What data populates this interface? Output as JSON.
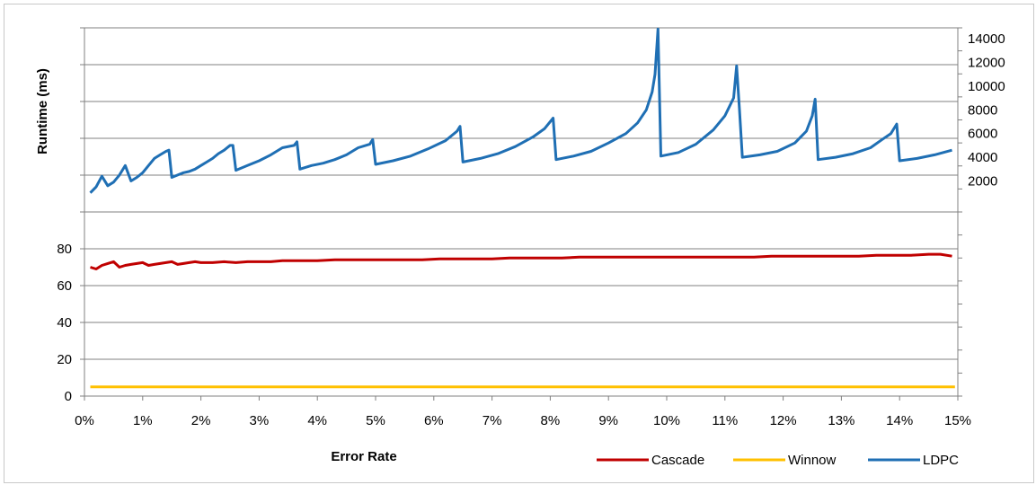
{
  "chart_data": {
    "type": "line",
    "xlabel": "Error Rate",
    "ylabel": "Runtime (ms)",
    "x_ticks": [
      "0%",
      "1%",
      "2%",
      "3%",
      "4%",
      "5%",
      "6%",
      "7%",
      "8%",
      "9%",
      "10%",
      "11%",
      "12%",
      "13%",
      "14%",
      "15%"
    ],
    "y_left_ticks": [
      "0",
      "20",
      "40",
      "60",
      "80"
    ],
    "y_right_ticks": [
      "2000",
      "4000",
      "6000",
      "8000",
      "10000",
      "12000",
      "14000"
    ],
    "xlim": [
      0,
      15
    ],
    "y_left_range": [
      0,
      80
    ],
    "y_right_range": [
      2000,
      14000
    ],
    "legend_position": "bottom-right",
    "grid": true,
    "series": [
      {
        "name": "Cascade",
        "color": "#c00000",
        "axis": "left",
        "x": [
          0.1,
          0.2,
          0.3,
          0.4,
          0.5,
          0.6,
          0.7,
          0.8,
          0.9,
          1.0,
          1.1,
          1.2,
          1.3,
          1.4,
          1.5,
          1.6,
          1.7,
          1.8,
          1.9,
          2.0,
          2.2,
          2.4,
          2.6,
          2.8,
          3.0,
          3.2,
          3.4,
          3.6,
          3.8,
          4.0,
          4.3,
          4.6,
          4.9,
          5.2,
          5.5,
          5.8,
          6.1,
          6.4,
          6.7,
          7.0,
          7.3,
          7.6,
          7.9,
          8.2,
          8.5,
          8.8,
          9.1,
          9.4,
          9.7,
          10.0,
          10.3,
          10.6,
          10.9,
          11.2,
          11.5,
          11.8,
          12.1,
          12.4,
          12.7,
          13.0,
          13.3,
          13.6,
          13.9,
          14.2,
          14.5,
          14.7,
          14.9
        ],
        "values": [
          70,
          69,
          71,
          72,
          73,
          70,
          71,
          71.5,
          72,
          72.5,
          71,
          71.5,
          72,
          72.5,
          73,
          71.5,
          72,
          72.5,
          73,
          72.5,
          72.5,
          73,
          72.5,
          73,
          73,
          73,
          73.5,
          73.5,
          73.5,
          73.5,
          74,
          74,
          74,
          74,
          74,
          74,
          74.5,
          74.5,
          74.5,
          74.5,
          75,
          75,
          75,
          75,
          75.5,
          75.5,
          75.5,
          75.5,
          75.5,
          75.5,
          75.5,
          75.5,
          75.5,
          75.5,
          75.5,
          76,
          76,
          76,
          76,
          76,
          76,
          76.5,
          76.5,
          76.5,
          77,
          77,
          76
        ]
      },
      {
        "name": "Winnow",
        "color": "#ffc000",
        "axis": "left",
        "x": [
          0.1,
          14.95
        ],
        "values": [
          5,
          5
        ]
      },
      {
        "name": "LDPC",
        "color": "#1f6fb4",
        "axis": "right",
        "x": [
          0.1,
          0.2,
          0.3,
          0.4,
          0.5,
          0.6,
          0.7,
          0.8,
          0.9,
          1.0,
          1.1,
          1.2,
          1.3,
          1.4,
          1.45,
          1.5,
          1.6,
          1.7,
          1.8,
          1.9,
          2.0,
          2.1,
          2.2,
          2.3,
          2.4,
          2.5,
          2.55,
          2.6,
          2.8,
          3.0,
          3.2,
          3.4,
          3.6,
          3.65,
          3.7,
          3.9,
          4.1,
          4.3,
          4.5,
          4.7,
          4.9,
          4.95,
          5.0,
          5.3,
          5.6,
          5.9,
          6.2,
          6.4,
          6.45,
          6.5,
          6.8,
          7.1,
          7.4,
          7.7,
          7.9,
          8.05,
          8.1,
          8.4,
          8.7,
          9.0,
          9.3,
          9.5,
          9.65,
          9.75,
          9.8,
          9.85,
          9.9,
          10.2,
          10.5,
          10.8,
          11.0,
          11.15,
          11.2,
          11.25,
          11.3,
          11.6,
          11.9,
          12.2,
          12.4,
          12.5,
          12.55,
          12.6,
          12.9,
          13.2,
          13.5,
          13.7,
          13.85,
          13.95,
          14.0,
          14.3,
          14.6,
          14.9
        ],
        "values": [
          1000,
          1500,
          2400,
          1600,
          1900,
          2500,
          3300,
          2000,
          2300,
          2700,
          3300,
          3900,
          4200,
          4500,
          4600,
          2300,
          2500,
          2700,
          2800,
          3000,
          3300,
          3600,
          3900,
          4300,
          4600,
          5000,
          5000,
          2900,
          3300,
          3700,
          4200,
          4800,
          5000,
          5300,
          3000,
          3300,
          3500,
          3800,
          4200,
          4800,
          5100,
          5500,
          3400,
          3700,
          4100,
          4700,
          5400,
          6200,
          6600,
          3600,
          3900,
          4300,
          4900,
          5700,
          6400,
          7300,
          3800,
          4100,
          4500,
          5200,
          6000,
          6900,
          8000,
          9500,
          11000,
          14800,
          4100,
          4400,
          5100,
          6300,
          7500,
          9000,
          11700,
          8000,
          4000,
          4200,
          4500,
          5200,
          6200,
          7500,
          8900,
          3800,
          4000,
          4300,
          4800,
          5500,
          6000,
          6800,
          3700,
          3900,
          4200,
          4600
        ]
      }
    ]
  }
}
